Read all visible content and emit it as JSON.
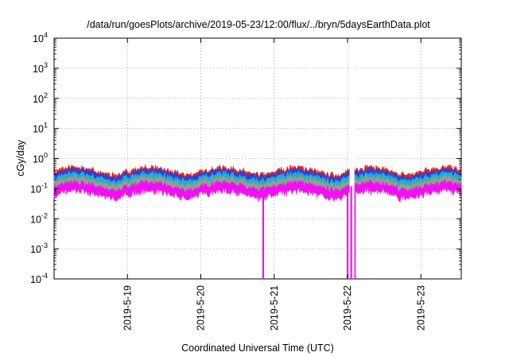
{
  "chart_data": {
    "type": "area",
    "title": "/data/run/goesPlots/archive/2019-05-23/12:00/flux/../bryn/5daysEarthData.plot",
    "xlabel": "Coordinated Universal Time (UTC)",
    "ylabel": "cGy/day",
    "yscale": "log",
    "ylim": [
      0.0001,
      10000
    ],
    "y_ticks": [
      {
        "base": "10",
        "exp": "-4"
      },
      {
        "base": "10",
        "exp": "-3"
      },
      {
        "base": "10",
        "exp": "-2"
      },
      {
        "base": "10",
        "exp": "-1"
      },
      {
        "base": "10",
        "exp": "0"
      },
      {
        "base": "10",
        "exp": "1"
      },
      {
        "base": "10",
        "exp": "2"
      },
      {
        "base": "10",
        "exp": "3"
      },
      {
        "base": "10",
        "exp": "4"
      }
    ],
    "x_ticks": [
      "2019-5-19",
      "2019-5-20",
      "2019-5-21",
      "2019-5-22",
      "2019-5-23"
    ],
    "xlim_days": [
      -1.0,
      4.55
    ],
    "grid": true,
    "legend": "none",
    "series": [
      {
        "color": "#e8231c",
        "level": 0.38
      },
      {
        "color": "#2d3fd6",
        "level": 0.32
      },
      {
        "color": "#1aaee6",
        "level": 0.24
      },
      {
        "color": "#2fb2a0",
        "level": 0.2
      },
      {
        "color": "#9a9a9a",
        "level": 0.17
      },
      {
        "color": "#f010f0",
        "level": 0.12
      }
    ],
    "dropouts_days": [
      1.85,
      3.0,
      3.1
    ]
  }
}
